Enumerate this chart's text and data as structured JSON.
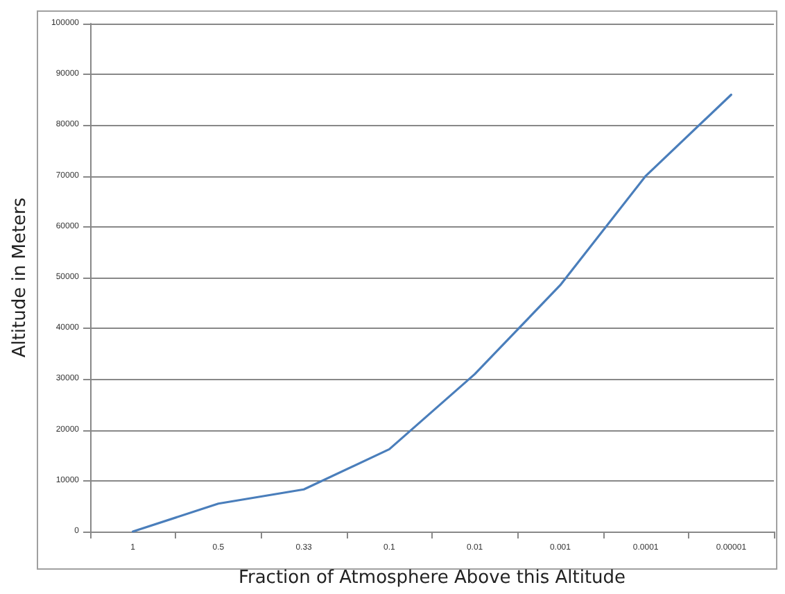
{
  "chart_data": {
    "type": "line",
    "xlabel": "Fraction of Atmosphere Above this Altitude",
    "ylabel": "Altitude in Meters",
    "categories": [
      "1",
      "0.5",
      "0.33",
      "0.1",
      "0.01",
      "0.001",
      "0.0001",
      "0.00001"
    ],
    "series": [
      {
        "color": "#4a7ebb",
        "values": [
          0,
          5500,
          8300,
          16200,
          31000,
          48500,
          70000,
          86000
        ]
      }
    ],
    "ylim": [
      0,
      100000
    ],
    "yticks": [
      0,
      10000,
      20000,
      30000,
      40000,
      50000,
      60000,
      70000,
      80000,
      90000,
      100000
    ],
    "grid": "y",
    "marker": "none",
    "line_style": "solid"
  }
}
